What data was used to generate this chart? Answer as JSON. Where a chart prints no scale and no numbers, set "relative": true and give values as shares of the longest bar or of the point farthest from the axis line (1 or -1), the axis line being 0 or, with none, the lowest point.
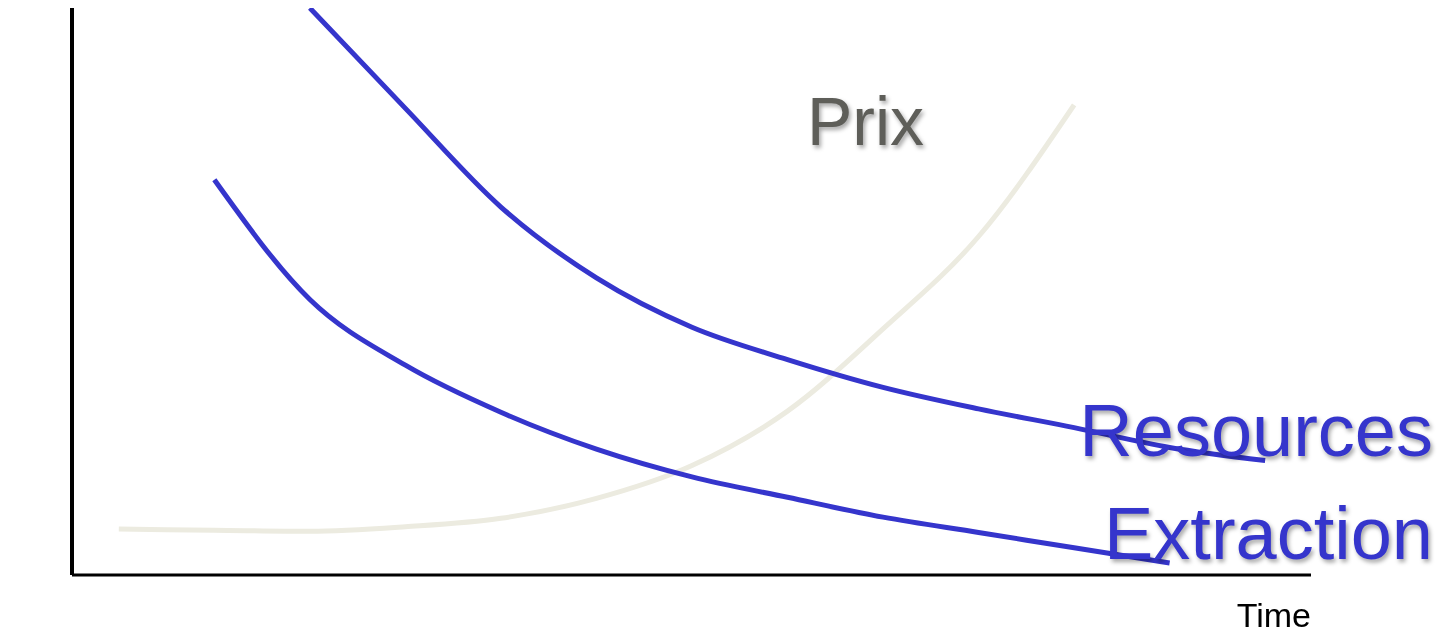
{
  "chart_data": {
    "type": "line",
    "relative": true,
    "xlabel": "Time",
    "categories": [
      null,
      null,
      null,
      null,
      null,
      null,
      null,
      null,
      null,
      null,
      null,
      null,
      null
    ],
    "legend": false,
    "marker": "none",
    "grid": false,
    "series": [
      {
        "name": "Prix",
        "color": "#ecebe0",
        "values": [
          0.081,
          0.079,
          0.077,
          0.085,
          0.1,
          0.135,
          0.193,
          0.289,
          0.434,
          0.597,
          0.829,
          null,
          null
        ]
      },
      {
        "name": "Resources",
        "color": "#3535cc",
        "values": [
          null,
          null,
          1,
          0.823,
          0.649,
          0.524,
          0.437,
          0.38,
          0.331,
          0.293,
          0.26,
          0.225,
          0.202
        ]
      },
      {
        "name": "Extraction",
        "color": "#3535cc",
        "values": [
          null,
          0.697,
          0.486,
          0.37,
          0.287,
          0.222,
          0.173,
          0.137,
          0.102,
          0.075,
          0.048,
          0.021,
          null
        ]
      }
    ]
  }
}
